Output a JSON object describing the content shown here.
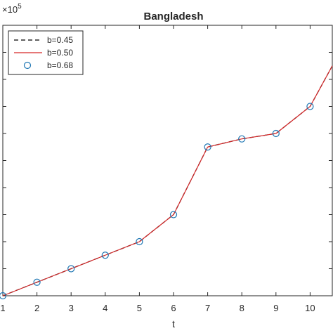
{
  "chart_data": {
    "type": "line",
    "title": "Bangladesh",
    "xlabel": "t",
    "ylabel": "",
    "exponent_label": "×10",
    "exponent_power": "5",
    "xlim": [
      1,
      10.65
    ],
    "ylim": [
      0,
      10
    ],
    "x_ticks": [
      1,
      2,
      3,
      4,
      5,
      6,
      7,
      8,
      9,
      10
    ],
    "x": [
      1,
      2,
      3,
      4,
      5,
      6,
      7,
      8,
      9,
      10,
      10.65
    ],
    "grid": false,
    "legend_position": "top-left",
    "series": [
      {
        "name": "b=0.45",
        "style": "dashed",
        "color": "#000000",
        "values": [
          0.0,
          0.5,
          1.0,
          1.5,
          2.0,
          3.0,
          5.5,
          5.8,
          6.0,
          7.0,
          8.5
        ]
      },
      {
        "name": "b=0.50",
        "style": "solid",
        "color": "#d62728",
        "values": [
          0.0,
          0.5,
          1.0,
          1.5,
          2.0,
          3.0,
          5.5,
          5.8,
          6.0,
          7.0,
          8.5
        ]
      },
      {
        "name": "b=0.68",
        "style": "markers",
        "color": "#1f77b4",
        "x": [
          1,
          2,
          3,
          4,
          5,
          6,
          7,
          8,
          9,
          10
        ],
        "values": [
          0.0,
          0.5,
          1.0,
          1.5,
          2.0,
          3.0,
          5.5,
          5.8,
          6.0,
          7.0
        ]
      }
    ]
  }
}
